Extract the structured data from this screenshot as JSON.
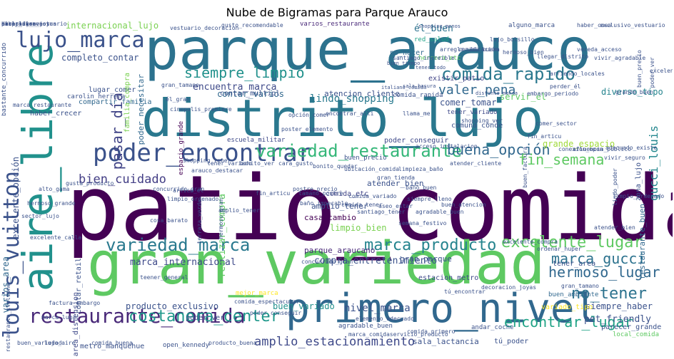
{
  "title": "Nube de Bigramas para Parque Arauco",
  "words": [
    {
      "text": "patio_comida",
      "color": "#440154"
    },
    {
      "text": "distrito_lujo",
      "color": "#2a788e"
    },
    {
      "text": "parque_arauco",
      "color": "#2c728e"
    },
    {
      "text": "gran_variedad",
      "color": "#5ec962"
    },
    {
      "text": "aire_libre",
      "color": "#21918c"
    },
    {
      "text": "primero_nivel",
      "color": "#31688e"
    },
    {
      "text": "louis_vuitton",
      "color": "#3b528b"
    },
    {
      "text": "poder_encontrar",
      "color": "#3b528b"
    },
    {
      "text": "lujo_marca",
      "color": "#3b528b"
    },
    {
      "text": "restaurante_comida",
      "color": "#482878"
    },
    {
      "text": "variedad_restaurante",
      "color": "#35b779"
    },
    {
      "text": "variedad_marca",
      "color": "#29798e"
    },
    {
      "text": "costanera_center",
      "color": "#1f988b"
    },
    {
      "text": "comida_rapido",
      "color": "#2a788e"
    },
    {
      "text": "excelente_lugar",
      "color": "#5ec962"
    },
    {
      "text": "marca_producto",
      "color": "#25848e"
    },
    {
      "text": "siempre_limpio",
      "color": "#21918c"
    },
    {
      "text": "hermoso_lugar",
      "color": "#31688e"
    },
    {
      "text": "encontrar_lugar",
      "color": "#20a386"
    },
    {
      "text": "marca_gucci",
      "color": "#2c728e"
    },
    {
      "text": "buena_opción",
      "color": "#31688e"
    },
    {
      "text": "fin_semana",
      "color": "#5ec962"
    },
    {
      "text": "amplio_estacionamiento",
      "color": "#3e4989"
    },
    {
      "text": "bien_cuidado",
      "color": "#433e85"
    },
    {
      "text": "valer_pena",
      "color": "#31688e"
    },
    {
      "text": "no_tener",
      "color": "#2c728e"
    },
    {
      "text": "gucci_louis",
      "color": "#24878e"
    },
    {
      "text": "pasar_día",
      "color": "#414487"
    },
    {
      "text": "lindo_shopping",
      "color": "#29798e"
    },
    {
      "text": "compra_entretenimiento",
      "color": "#3b528b"
    },
    {
      "text": "marca_internacional",
      "color": "#3e4989"
    },
    {
      "text": "encuentra_marca",
      "color": "#3e4989"
    },
    {
      "text": "contar_varios",
      "color": "#31688e"
    },
    {
      "text": "completo_contar",
      "color": "#3b528b"
    },
    {
      "text": "internacional_lujo",
      "color": "#7ad151"
    },
    {
      "text": "atencion_cliente",
      "color": "#3b528b"
    },
    {
      "text": "comer_tomar",
      "color": "#3b528b"
    },
    {
      "text": "él_buen",
      "color": "#2c728e"
    },
    {
      "text": "varios_restaurante",
      "color": "#482878"
    },
    {
      "text": "no_hacer",
      "color": "#31688e"
    },
    {
      "text": "red_salud",
      "color": "#20a386"
    },
    {
      "text": "herrera_etc",
      "color": "#5ec962"
    },
    {
      "text": "producto_exclusivo",
      "color": "#3b528b"
    },
    {
      "text": "buen_variado",
      "color": "#21918c"
    },
    {
      "text": "nivel_marca",
      "color": "#3b528b"
    },
    {
      "text": "siempre_haber",
      "color": "#3b528b"
    },
    {
      "text": "pet_friendly",
      "color": "#3b528b"
    },
    {
      "text": "parque_araucano",
      "color": "#482878"
    },
    {
      "text": "gran_parque",
      "color": "#3b528b"
    },
    {
      "text": "limpio_bien",
      "color": "#7ad151"
    },
    {
      "text": "casa_cambio",
      "color": "#440154"
    },
    {
      "text": "amplio_tener",
      "color": "#3b528b"
    },
    {
      "text": "comida_etc",
      "color": "#414487"
    },
    {
      "text": "atender_bien",
      "color": "#3b528b"
    },
    {
      "text": "escuela_militar",
      "color": "#3e4989"
    },
    {
      "text": "poder_conseguir",
      "color": "#3e4989"
    },
    {
      "text": "comuna_conde",
      "color": "#3b528b"
    },
    {
      "text": "tener_variado",
      "color": "#3e4989"
    },
    {
      "text": "servir_él",
      "color": "#5ec962"
    },
    {
      "text": "diverso_tipo",
      "color": "#25848e"
    },
    {
      "text": "zona_lujo",
      "color": "#3b528b"
    },
    {
      "text": "grande_espacio",
      "color": "#9fda3a"
    },
    {
      "text": "contar_multipl",
      "color": "#3b528b"
    },
    {
      "text": "lugar_comer",
      "color": "#3b528b"
    },
    {
      "text": "compartir_familia",
      "color": "#31688e"
    },
    {
      "text": "poder_necesitar",
      "color": "#31688e"
    },
    {
      "text": "familia_compra",
      "color": "#7ad151"
    },
    {
      "text": "haber_crecer",
      "color": "#3b528b"
    },
    {
      "text": "carolin_herrera",
      "color": "#3b528b"
    },
    {
      "text": "espacio_grande",
      "color": "#440154"
    },
    {
      "text": "realizar_compra",
      "color": "#5ec962"
    },
    {
      "text": "area_distension",
      "color": "#3e4989"
    },
    {
      "text": "contar_retail",
      "color": "#3b528b"
    },
    {
      "text": "metro_manquehue",
      "color": "#3b528b"
    },
    {
      "text": "poder_ver",
      "color": "#3b528b"
    },
    {
      "text": "mejor_marca",
      "color": "#fde725"
    },
    {
      "text": "agradable_buen",
      "color": "#3b528b"
    },
    {
      "text": "estacion_metro",
      "color": "#3e4989"
    },
    {
      "text": "tú_poder",
      "color": "#3b528b"
    },
    {
      "text": "sala_lactancia",
      "color": "#3b528b"
    },
    {
      "text": "local_comida",
      "color": "#5ec962"
    },
    {
      "text": "parecer_grande",
      "color": "#3b528b"
    },
    {
      "text": "variado_tipo",
      "color": "#fde725"
    },
    {
      "text": "tener_area",
      "color": "#3b528b"
    },
    {
      "text": "restaurante_buen",
      "color": "#31688e"
    },
    {
      "text": "existir_patio",
      "color": "#414487"
    },
    {
      "text": "varios_area",
      "color": "#31688e"
    },
    {
      "text": "excelente_opción",
      "color": "#3b528b"
    },
    {
      "text": "concurrido_gran",
      "color": "#3b528b"
    },
    {
      "text": "open_kennedy",
      "color": "#3b528b"
    },
    {
      "text": "buen_ambiente",
      "color": "#31688e"
    },
    {
      "text": "andar_coche",
      "color": "#3b528b"
    },
    {
      "text": "buen_precio",
      "color": "#3b528b"
    },
    {
      "text": "bastante_concurrido",
      "color": "#3b528b"
    },
    {
      "text": "comida_rapida",
      "color": "#3b528b"
    },
    {
      "text": "vestuario_decoracion",
      "color": "#3b528b"
    },
    {
      "text": "gusto_recomendable",
      "color": "#3b528b"
    },
    {
      "text": "shopping_menos",
      "color": "#3b528b"
    },
    {
      "text": "alguno_marca",
      "color": "#3b528b"
    },
    {
      "text": "haber_cosa",
      "color": "#3b528b"
    },
    {
      "text": "exclusivo_vestuario",
      "color": "#3b528b"
    },
    {
      "text": "lujo_bolsillo",
      "color": "#3b528b"
    },
    {
      "text": "hermoso_bien",
      "color": "#3b528b"
    },
    {
      "text": "bien_tiempo",
      "color": "#3b528b"
    },
    {
      "text": "tener_todo",
      "color": "#3b528b"
    },
    {
      "text": "santiago_increíble",
      "color": "#3b528b"
    },
    {
      "text": "sala_basura",
      "color": "#3b528b"
    },
    {
      "text": "llegar_distrito",
      "color": "#3b528b"
    },
    {
      "text": "gusta_producto",
      "color": "#3b528b"
    },
    {
      "text": "gran_tamano",
      "color": "#3b528b"
    },
    {
      "text": "cinepolis_premiere",
      "color": "#3b528b"
    },
    {
      "text": "italiano_comida",
      "color": "#3b528b"
    },
    {
      "text": "distinto_marca",
      "color": "#3b528b"
    },
    {
      "text": "embargo_periodo",
      "color": "#3b528b"
    },
    {
      "text": "grande_buen",
      "color": "#3b528b"
    },
    {
      "text": "excelente_atencion",
      "color": "#3b528b"
    },
    {
      "text": "marca_restaurante",
      "color": "#3b528b"
    },
    {
      "text": "él_gran",
      "color": "#3b528b"
    },
    {
      "text": "encontrar_alli",
      "color": "#3b528b"
    },
    {
      "text": "comer_sector",
      "color": "#3b528b"
    },
    {
      "text": "fin_articu",
      "color": "#3b528b"
    },
    {
      "text": "conexion_open",
      "color": "#3b528b"
    },
    {
      "text": "afluencia_publico",
      "color": "#3b528b"
    },
    {
      "text": "arauco_destacar",
      "color": "#3b528b"
    },
    {
      "text": "shopping_tener",
      "color": "#3b528b"
    },
    {
      "text": "alto_gama",
      "color": "#3b528b"
    },
    {
      "text": "hermoso_grande",
      "color": "#3b528b"
    },
    {
      "text": "sector_lujo",
      "color": "#3b528b"
    },
    {
      "text": "cosa_barato",
      "color": "#3b528b"
    },
    {
      "text": "terraza_verde",
      "color": "#3b528b"
    },
    {
      "text": "hermoso_gran",
      "color": "#3b528b"
    },
    {
      "text": "baño_impecable",
      "color": "#3b528b"
    },
    {
      "text": "siempre_lleno",
      "color": "#3b528b"
    },
    {
      "text": "semana_festivo",
      "color": "#3b528b"
    },
    {
      "text": "buen_atencion",
      "color": "#3b528b"
    },
    {
      "text": "santiago_tener",
      "color": "#3b528b"
    },
    {
      "text": "buen_factura",
      "color": "#3b528b"
    },
    {
      "text": "limpio_ordenado",
      "color": "#3b528b"
    },
    {
      "text": "lindo_poder",
      "color": "#3b528b"
    },
    {
      "text": "ordenar_huper",
      "color": "#3b528b"
    },
    {
      "text": "tú_encontrar",
      "color": "#3b528b"
    },
    {
      "text": "decoracion_joyas",
      "color": "#3b528b"
    },
    {
      "text": "teener_general",
      "color": "#3b528b"
    },
    {
      "text": "factura_embargo",
      "color": "#3b528b"
    },
    {
      "text": "marca_lugar",
      "color": "#3b528b"
    },
    {
      "text": "buen_variedad",
      "color": "#3b528b"
    },
    {
      "text": "lujo_aire",
      "color": "#3b528b"
    },
    {
      "text": "comida_buena",
      "color": "#3b528b"
    },
    {
      "text": "producto_buena",
      "color": "#3b528b"
    },
    {
      "text": "comida_primero",
      "color": "#3b528b"
    },
    {
      "text": "elemento_adecuado",
      "color": "#3b528b"
    },
    {
      "text": "marca_comidaservicio_producto",
      "color": "#3b528b"
    },
    {
      "text": "gran_tamano",
      "color": "#3b528b"
    },
    {
      "text": "excelente_calla",
      "color": "#3b528b"
    },
    {
      "text": "restaurante_italiano",
      "color": "#3b528b"
    },
    {
      "text": "acceso_instalacion",
      "color": "#3b528b"
    },
    {
      "text": "tamano_postre",
      "color": "#3b528b"
    },
    {
      "text": "comida_espectacular",
      "color": "#3b528b"
    },
    {
      "text": "poder_conseguir",
      "color": "#3b528b"
    },
    {
      "text": "limpieza_baño",
      "color": "#3b528b"
    },
    {
      "text": "poder_ver",
      "color": "#3b528b"
    },
    {
      "text": "buen_precio",
      "color": "#3b528b"
    },
    {
      "text": "arriendo_locales",
      "color": "#3b528b"
    },
    {
      "text": "perder_él",
      "color": "#3b528b"
    },
    {
      "text": "llama_me",
      "color": "#3b528b"
    },
    {
      "text": "shopping_ver",
      "color": "#3b528b"
    },
    {
      "text": "articu_el",
      "color": "#3b528b"
    },
    {
      "text": "bonito_ver",
      "color": "#3b528b"
    },
    {
      "text": "tener_variado",
      "color": "#3b528b"
    },
    {
      "text": "cara_gusto",
      "color": "#3b528b"
    },
    {
      "text": "poster_elemento",
      "color": "#3b528b"
    },
    {
      "text": "opción_comer",
      "color": "#3b528b"
    },
    {
      "text": "bonito_quedar",
      "color": "#3b528b"
    },
    {
      "text": "ubicación_comida",
      "color": "#3b528b"
    },
    {
      "text": "comida_tener",
      "color": "#3b528b"
    },
    {
      "text": "baño_buen",
      "color": "#3b528b"
    },
    {
      "text": "excelente_compra",
      "color": "#3b528b"
    },
    {
      "text": "atender_bien",
      "color": "#3b528b"
    },
    {
      "text": "adecuado_existe",
      "color": "#3b528b"
    },
    {
      "text": "vivir_seguro",
      "color": "#3b528b"
    },
    {
      "text": "atender_cliente",
      "color": "#3b528b"
    },
    {
      "text": "amplio_tener",
      "color": "#3b528b"
    },
    {
      "text": "limpio_ordenado",
      "color": "#3b528b"
    },
    {
      "text": "concurrido_gran",
      "color": "#3b528b"
    },
    {
      "text": "fin_articu",
      "color": "#3b528b"
    },
    {
      "text": "gran_tienda",
      "color": "#3b528b"
    },
    {
      "text": "comida_variado",
      "color": "#3b528b"
    },
    {
      "text": "postre_precio",
      "color": "#3b528b"
    },
    {
      "text": "aseo_estar",
      "color": "#3b528b"
    },
    {
      "text": "vereda_acceso",
      "color": "#3b528b"
    },
    {
      "text": "arreglo_ubicación",
      "color": "#3b528b"
    },
    {
      "text": "comida_buena",
      "color": "#3b528b"
    },
    {
      "text": "agradable_buen",
      "color": "#3b528b"
    },
    {
      "text": "vivir_agradable",
      "color": "#3b528b"
    },
    {
      "text": "aire_libre",
      "color": "#3b528b"
    },
    {
      "text": "decoracion_joyas",
      "color": "#3b528b"
    },
    {
      "text": "shopping_menos",
      "color": "#3b528b"
    },
    {
      "text": "pasar_día",
      "color": "#3b528b"
    },
    {
      "text": "haber_cosa",
      "color": "#3b528b"
    },
    {
      "text": "exclusivo_vestuario",
      "color": "#3b528b"
    }
  ]
}
